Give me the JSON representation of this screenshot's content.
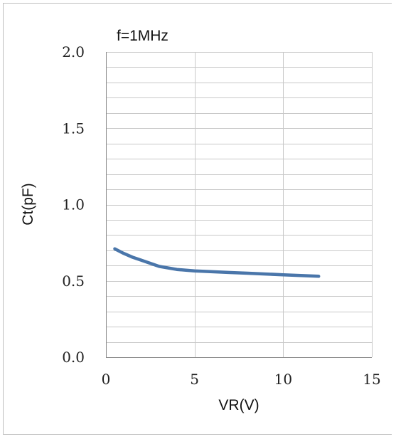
{
  "chart_data": {
    "type": "line",
    "title": "f=1MHz",
    "xlabel": "VR(V)",
    "ylabel": "Ct(pF)",
    "xlim": [
      0,
      15
    ],
    "ylim": [
      0.0,
      2.0
    ],
    "x_ticks": [
      "0",
      "5",
      "10",
      "15"
    ],
    "y_ticks": [
      "0.0",
      "0.5",
      "1.0",
      "1.5",
      "2.0"
    ],
    "y_minor_step": 0.1,
    "grid": true,
    "legend": "none",
    "series": [
      {
        "color": "#4a76aa",
        "x": [
          0.5,
          1,
          1.5,
          2,
          3,
          4,
          5,
          6,
          7,
          8,
          9,
          10,
          11,
          12
        ],
        "y": [
          0.71,
          0.68,
          0.655,
          0.635,
          0.595,
          0.575,
          0.565,
          0.56,
          0.555,
          0.55,
          0.545,
          0.54,
          0.535,
          0.53
        ]
      }
    ]
  }
}
